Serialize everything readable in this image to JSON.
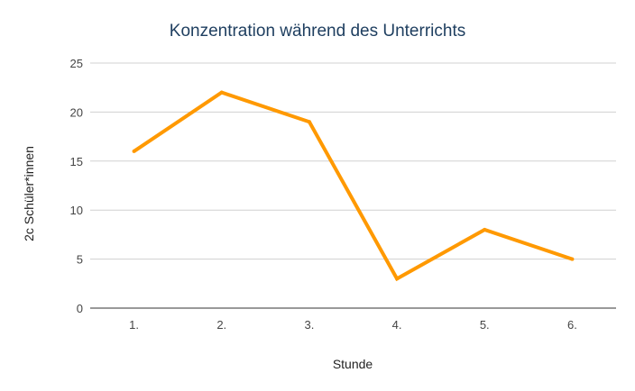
{
  "chart_data": {
    "type": "line",
    "title": "Konzentration während des Unterrichts",
    "xlabel": "Stunde",
    "ylabel": "2c Schüler*innen",
    "categories": [
      "1.",
      "2.",
      "3.",
      "4.",
      "5.",
      "6."
    ],
    "series": [
      {
        "values": [
          16,
          22,
          19,
          3,
          8,
          5
        ],
        "color": "#ff9900"
      }
    ],
    "ylim": [
      0,
      25
    ],
    "yticks": [
      "0",
      "5",
      "10",
      "15",
      "20",
      "25"
    ],
    "grid": true,
    "legend": "none"
  }
}
